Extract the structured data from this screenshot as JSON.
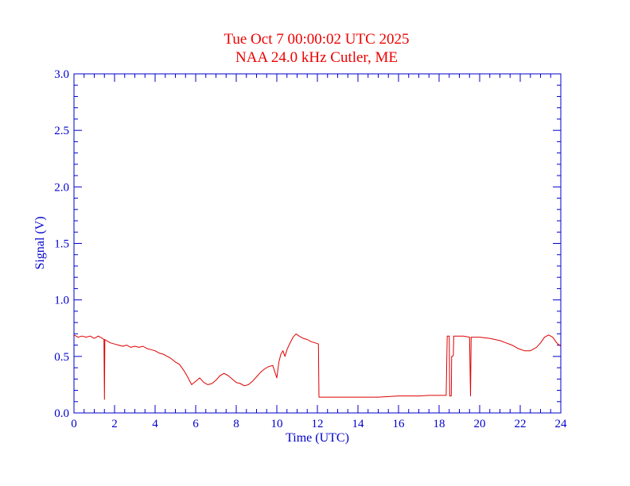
{
  "chart_data": {
    "type": "line",
    "title": "Tue Oct 7 00:00:02 UTC 2025",
    "subtitle": "NAA 24.0 kHz Cutler, ME",
    "xlabel": "Time (UTC)",
    "ylabel": "Signal (V)",
    "xlim": [
      0,
      24
    ],
    "ylim": [
      0,
      3.0
    ],
    "x_ticks": [
      "0",
      "2",
      "4",
      "6",
      "8",
      "10",
      "12",
      "14",
      "16",
      "18",
      "20",
      "22",
      "24"
    ],
    "y_ticks": [
      "0.0",
      "0.5",
      "1.0",
      "1.5",
      "2.0",
      "2.5",
      "3.0"
    ],
    "grid": false,
    "colors": {
      "axis": "#0000cc",
      "title": "#ee0000",
      "series": "#dd0000"
    },
    "series": [
      {
        "x": [
          0,
          0.2,
          0.4,
          0.6,
          0.8,
          1.0,
          1.2,
          1.4,
          1.48,
          1.5,
          1.52,
          1.6,
          1.8,
          2.0,
          2.2,
          2.4,
          2.6,
          2.8,
          3.0,
          3.2,
          3.4,
          3.6,
          3.8,
          4.0,
          4.2,
          4.4,
          4.6,
          4.8,
          5.0,
          5.2,
          5.4,
          5.6,
          5.8,
          6.0,
          6.2,
          6.4,
          6.6,
          6.8,
          7.0,
          7.2,
          7.4,
          7.6,
          7.8,
          8.0,
          8.2,
          8.4,
          8.6,
          8.8,
          9.0,
          9.2,
          9.4,
          9.6,
          9.8,
          10.0,
          10.1,
          10.2,
          10.3,
          10.4,
          10.5,
          10.6,
          10.8,
          10.95,
          11.1,
          11.3,
          11.5,
          11.7,
          11.9,
          12.05,
          12.08,
          12.3,
          13.0,
          14.0,
          14.5,
          15.0,
          15.5,
          16.0,
          16.5,
          17.0,
          17.5,
          18.0,
          18.2,
          18.35,
          18.4,
          18.5,
          18.52,
          18.6,
          18.62,
          18.66,
          18.7,
          18.72,
          18.76,
          18.8,
          19.0,
          19.2,
          19.5,
          19.55,
          19.58,
          19.6,
          20.0,
          20.5,
          21.0,
          21.3,
          21.6,
          21.9,
          22.2,
          22.5,
          22.8,
          23.0,
          23.2,
          23.4,
          23.6,
          23.8,
          24.0
        ],
        "values": [
          0.69,
          0.67,
          0.68,
          0.67,
          0.68,
          0.66,
          0.68,
          0.66,
          0.65,
          0.12,
          0.65,
          0.64,
          0.62,
          0.61,
          0.6,
          0.59,
          0.6,
          0.58,
          0.59,
          0.58,
          0.59,
          0.57,
          0.56,
          0.55,
          0.53,
          0.52,
          0.5,
          0.48,
          0.45,
          0.43,
          0.38,
          0.32,
          0.25,
          0.28,
          0.31,
          0.27,
          0.25,
          0.26,
          0.29,
          0.33,
          0.35,
          0.33,
          0.3,
          0.27,
          0.26,
          0.24,
          0.25,
          0.28,
          0.32,
          0.36,
          0.39,
          0.41,
          0.42,
          0.31,
          0.45,
          0.52,
          0.55,
          0.5,
          0.56,
          0.6,
          0.67,
          0.7,
          0.68,
          0.66,
          0.65,
          0.63,
          0.62,
          0.61,
          0.14,
          0.14,
          0.14,
          0.14,
          0.14,
          0.14,
          0.145,
          0.15,
          0.15,
          0.15,
          0.155,
          0.155,
          0.155,
          0.155,
          0.68,
          0.68,
          0.15,
          0.15,
          0.5,
          0.5,
          0.51,
          0.68,
          0.68,
          0.68,
          0.68,
          0.68,
          0.67,
          0.15,
          0.67,
          0.67,
          0.67,
          0.66,
          0.64,
          0.62,
          0.6,
          0.57,
          0.55,
          0.55,
          0.58,
          0.62,
          0.67,
          0.69,
          0.67,
          0.62,
          0.59
        ]
      }
    ]
  }
}
